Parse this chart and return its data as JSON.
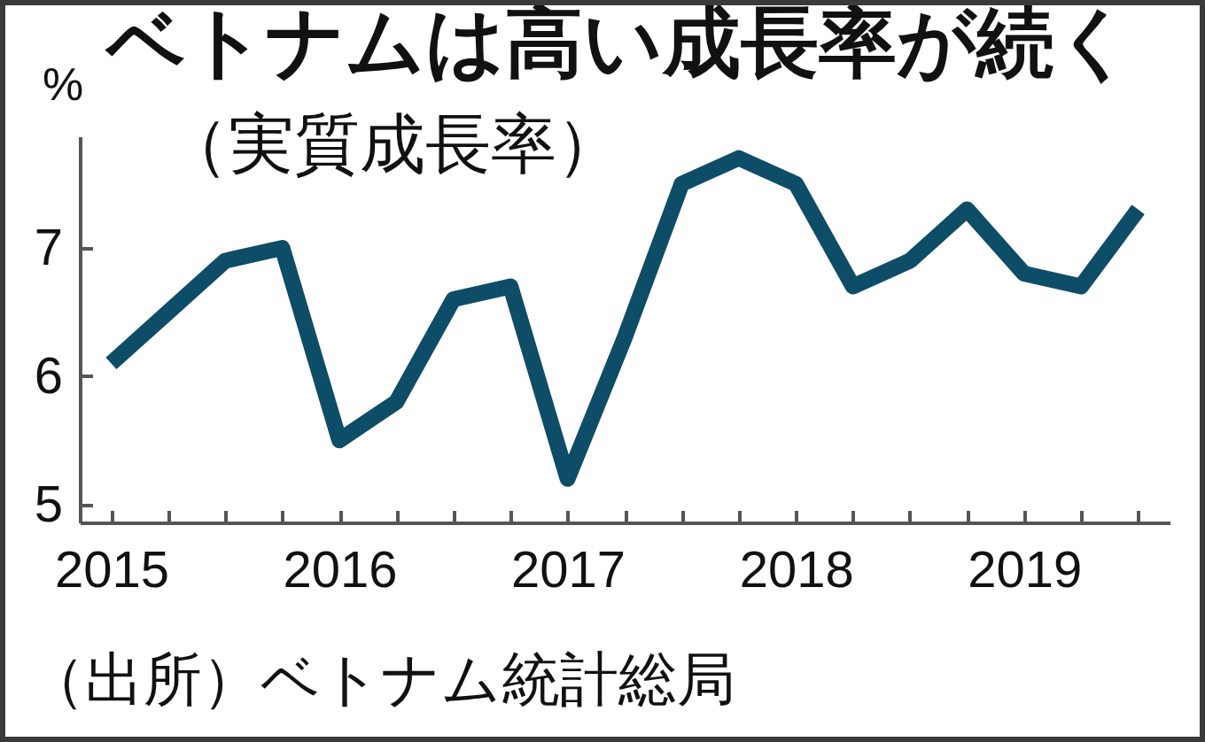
{
  "chart_data": {
    "type": "line",
    "title": "ベトナムは高い成長率が続く",
    "subtitle": "（実質成長率）",
    "ylabel": "%",
    "annotations": [
      "（出所）ベトナム統計総局"
    ],
    "categories": [
      "2015",
      null,
      null,
      null,
      "2016",
      null,
      null,
      null,
      "2017",
      null,
      null,
      null,
      "2018",
      null,
      null,
      null,
      "2019",
      null,
      null
    ],
    "series": [
      {
        "color": "#0e4d68",
        "values": [
          6.1,
          6.5,
          6.9,
          7.0,
          5.5,
          5.8,
          6.6,
          6.7,
          5.2,
          6.3,
          7.5,
          7.7,
          7.5,
          6.7,
          6.9,
          7.3,
          6.8,
          6.7,
          7.3
        ]
      }
    ],
    "ylim": [
      4.86,
      7.87
    ],
    "yticks": [
      5,
      6,
      7
    ],
    "line_style": "solid"
  }
}
